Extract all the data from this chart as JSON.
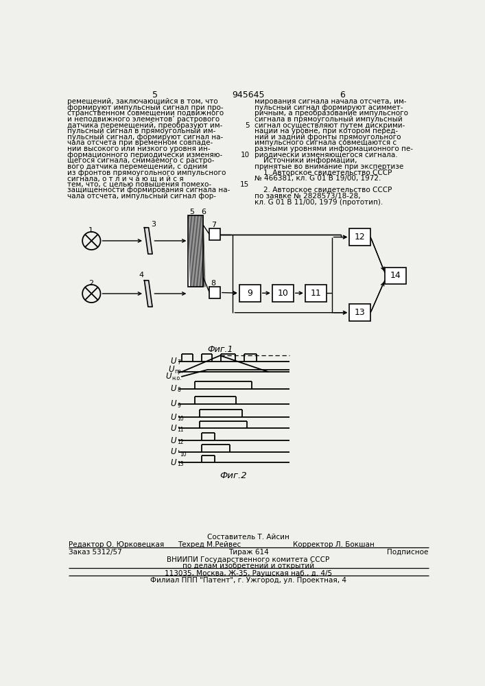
{
  "page_number_left": "5",
  "patent_number": "945645",
  "page_number_right": "6",
  "bg_color": "#f0f0ec",
  "fig1_label": "Фиг.1",
  "fig2_label": "Фиг.2",
  "left_text": [
    "ремещений, заключающийся в том, что",
    "формируют импульсный сигнал при про-",
    "странственном совмещении подвижного",
    "и неподвижного элементов’ растрового",
    "датчика перемещений, преобразуют им-",
    "пульсный сигнал в прямоугольный им-",
    "пульсный сигнал, формируют сигнал на-",
    "чала отсчета при временном совпаде-",
    "нии высокого или низкого уровня ин-",
    "формационного периодически изменяю-",
    "щегося сигнала, снимаемого с растро-",
    "вого датчика перемещений, с одним",
    "из фронтов прямоугольного импульсного",
    "сигнала, о т л и ч а ю щ и й с я",
    "тем, что, с целью повышения помехо-",
    "защищенности формирования сигнала на-",
    "чала отсчета, импульсный сигнал фор-"
  ],
  "right_text": [
    "мирования сигнала начала отсчета, им-",
    "пульсный сигнал формируют асиммет-",
    "ричным, а преобразование импульсного",
    "сигнала в прямоугольный импульсный",
    "сигнал осуществляют путем дискрими-",
    "нации на уровне, при котором перед-",
    "ний и задний фронты прямоугольного",
    "импульсного сигнала совмещаются с",
    "разными уровнями информационного пе-",
    "риодически изменяющегося сигнала.",
    "    Источники информации,",
    "принятые во внимание при экспертизе",
    "    1. Авторское свидетельство СССР",
    "№ 466381, кл. G 01 B 19/00, 1972.",
    "",
    "    2. Авторское свидетельство СССР",
    "по заявке № 2828573/18-28,",
    "кл. G 01 B 11/00, 1979 (прототип)."
  ],
  "right_line_numbers": {
    "4": "5",
    "9": "10",
    "14": "15"
  },
  "footer_composer": "Составитель Т. Айсин",
  "footer_editor": "Редактор О. Юрковецкая",
  "footer_techred": "Техред М.Рейвес",
  "footer_corrector": "Корректор Л. Бокшан",
  "footer_order": "Заказ 5312/57",
  "footer_print": "Тираж 614",
  "footer_subscription": "Подписное",
  "footer_org1": "ВНИИПИ Государственного комитета СССР",
  "footer_org2": "по делам изобретений и открытий",
  "footer_addr": "113035, Москва, Ж-35, Раушская наб., д. 4/5",
  "footer_branch": "Филиал ППП \"Патент\", г. Ужгород, ул. Проектная, 4"
}
